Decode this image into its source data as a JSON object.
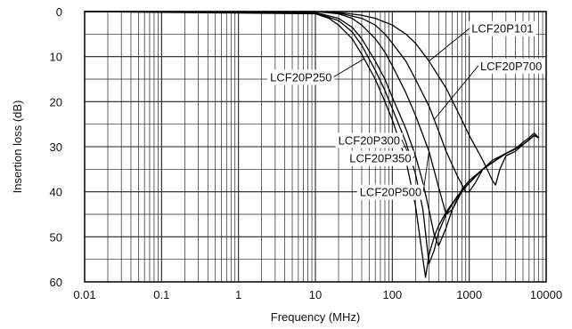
{
  "chart_data": {
    "type": "line",
    "title": "",
    "xlabel": "Frequency (MHz)",
    "ylabel": "Insertion loss (dB)",
    "x_scale": "log",
    "xlim": [
      0.01,
      10000
    ],
    "ylim": [
      0,
      60
    ],
    "y_inverted": true,
    "grid": true,
    "x_ticks": [
      "0.01",
      "0.1",
      "1",
      "10",
      "100",
      "1000",
      "10000"
    ],
    "y_ticks": [
      "0",
      "10",
      "20",
      "30",
      "40",
      "50",
      "60"
    ],
    "series": [
      {
        "name": "LCF20P101",
        "x": [
          0.01,
          10,
          20,
          40,
          60,
          100,
          150,
          200,
          300,
          500,
          700,
          1000,
          1500,
          2000,
          2200,
          2500,
          3000,
          4000,
          5000,
          6000,
          7000,
          8000
        ],
        "y": [
          0,
          0,
          0.2,
          0.8,
          1.5,
          3,
          5,
          7,
          11,
          17,
          22,
          27.5,
          33,
          37.5,
          38.5,
          35,
          32,
          31,
          29.5,
          28.5,
          27.5,
          28
        ]
      },
      {
        "name": "LCF20P700",
        "x": [
          0.01,
          10,
          20,
          40,
          60,
          80,
          100,
          150,
          200,
          300,
          400,
          500,
          700,
          900,
          1000,
          1200,
          1500,
          2000,
          3000,
          4000,
          5000,
          6000,
          7000,
          8000
        ],
        "y": [
          0,
          0,
          0.3,
          1.5,
          3,
          5,
          7,
          11,
          15,
          21,
          26.5,
          31,
          36.5,
          40,
          40,
          38,
          35,
          33,
          31.5,
          30.5,
          29,
          28,
          27,
          28
        ]
      },
      {
        "name": "LCF20P500",
        "x": [
          0.01,
          10,
          20,
          30,
          40,
          60,
          80,
          100,
          150,
          200,
          300,
          400,
          500,
          600,
          700,
          800,
          1000,
          1500,
          2000,
          3000,
          4000,
          5000,
          7000,
          8000
        ],
        "y": [
          0,
          0,
          0.5,
          1.5,
          3,
          6,
          9,
          12,
          18,
          23,
          31,
          39,
          45,
          44,
          41.5,
          39.5,
          37.5,
          35,
          33.5,
          31.5,
          30.5,
          29.5,
          27.5,
          28
        ]
      },
      {
        "name": "LCF20P350",
        "x": [
          0.01,
          10,
          20,
          30,
          40,
          60,
          80,
          100,
          150,
          200,
          250,
          300,
          350,
          400,
          500,
          600,
          800,
          1000,
          1500,
          2000,
          3000,
          5000,
          7000,
          8000
        ],
        "y": [
          0,
          0.2,
          1.5,
          3.5,
          6,
          11,
          15,
          19,
          26,
          32,
          38,
          44,
          49.5,
          52,
          48,
          44,
          40,
          38,
          35,
          33.5,
          31.5,
          29.5,
          27.5,
          28
        ]
      },
      {
        "name": "LCF20P300",
        "x": [
          0.01,
          10,
          20,
          30,
          40,
          60,
          80,
          100,
          150,
          200,
          250,
          300,
          350,
          400,
          500,
          700,
          1000,
          1500,
          2000,
          3000,
          5000,
          7000,
          8000
        ],
        "y": [
          0,
          0.3,
          2,
          4.5,
          7.5,
          13,
          17.5,
          21.5,
          29,
          36,
          44,
          56,
          53,
          49,
          45,
          41,
          38,
          35,
          33.5,
          31.5,
          29.5,
          27.5,
          28
        ]
      },
      {
        "name": "LCF20P250",
        "x": [
          0.01,
          10,
          15,
          20,
          30,
          40,
          50,
          60,
          80,
          100,
          150,
          200,
          250,
          270,
          300,
          350,
          400,
          500,
          700,
          1000,
          1500,
          2000,
          3000,
          5000,
          7000,
          8000
        ],
        "y": [
          0,
          0.5,
          1.5,
          3,
          6,
          9.5,
          12.5,
          15,
          20,
          24,
          33,
          43,
          55,
          59,
          54,
          50,
          47.5,
          44.5,
          41,
          38,
          35,
          33.5,
          31.5,
          29.5,
          27.5,
          28
        ]
      }
    ],
    "annotations": [
      {
        "label": "LCF20P101",
        "series": "LCF20P101",
        "at_x": 300,
        "text_x": 2700,
        "text_y": 3.7,
        "anchor": "middle"
      },
      {
        "label": "LCF20P700",
        "series": "LCF20P700",
        "at_x": 350,
        "text_x": 3500,
        "text_y": 12,
        "anchor": "middle"
      },
      {
        "label": "LCF20P250",
        "series": "LCF20P250",
        "at_x": 43,
        "text_x": 6.5,
        "text_y": 14.5,
        "anchor": "middle"
      },
      {
        "label": "LCF20P300",
        "series": "LCF20P300",
        "at_x": 175,
        "text_x": 50,
        "text_y": 28.5,
        "anchor": "middle"
      },
      {
        "label": "LCF20P350",
        "series": "LCF20P350",
        "at_x": 200,
        "text_x": 70,
        "text_y": 32.5,
        "anchor": "middle"
      },
      {
        "label": "LCF20P500",
        "series": "LCF20P500",
        "at_x": 300,
        "text_x": 95,
        "text_y": 40,
        "anchor": "middle"
      }
    ]
  }
}
